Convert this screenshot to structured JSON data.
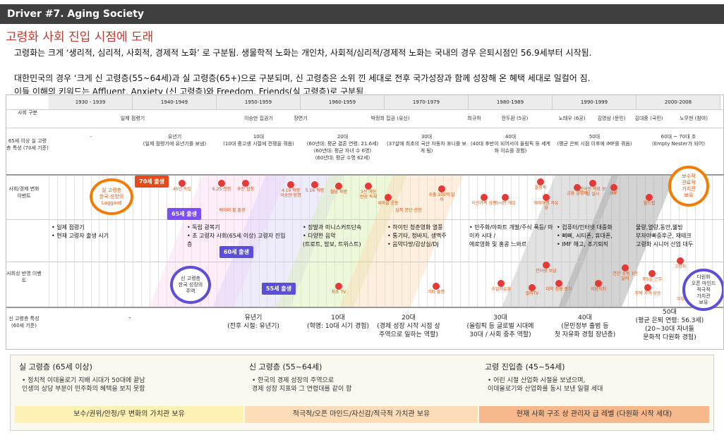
{
  "header": {
    "title": "Driver #7. Aging Society"
  },
  "heading": "고령화 사회 진입 시점에 도래",
  "paragraphs": [
    "고령화는 크게 ‘생리적, 심리적, 사회적, 경제적 노화’ 로 구분됨. 생물학적 노화는 개인차, 사회적/심리적/경제적 노화는 국내의 경우 은퇴시점인 56.9세부터 시작됨.",
    "대한민국의 경우 ‘크게 신 고령층(55~64세)과 실 고령층(65+)으로 구분되며, 신 고령층은 소위 낀 세대로 전후 국가성장과 함께 성장해 온 혜택 세대로 일컬어 짐.",
    "이들 이해의 키워드는 Affluent, Anxiety (신 고령층)와 Freedom, Friends(실 고령층)로 구분됨"
  ],
  "timeline": {
    "row_labels": [
      "사회 구분",
      "65세 이상 실 고령층 특성 (70세 기준)",
      "사회/경제 변화 이벤트",
      "사회상 반영 이벤트",
      "신 고령층 특성 (60세 기준)"
    ],
    "decades": [
      "1930 - 1939",
      "1940-1949",
      "1950-1959",
      "1960-1959",
      "1970-1979",
      "1980-1989",
      "1990-1999",
      "2000-2008"
    ],
    "eras": [
      "일제 점령기",
      "이승만 집권기",
      "장면기",
      "박정희 집권 (유신)",
      "최규하",
      "전두환 (5공)",
      "노태우 (6공)",
      "김영삼 (문민)",
      "김대중 (국민)",
      "노무현 (참여)"
    ],
    "senior_traits": [
      "-",
      "유년기\n(일제 점령기에 유년기를 보냄)",
      "10대\n(10대 중고생 시절에 전쟁을 겪음)",
      "20대\n(60년대: 평균 결혼 연령: 21.6세)\n(60년대: 평균 자녀 수 6명)\n(60년대: 평균 수명 62세)",
      "30대\n(37살에 최초의 국산 자동차 포니를 보게 됨)",
      "40대\n(40대 후반이 되어서야 올림픽 등 세계화 이슈를 경험)",
      "50대\n(평균 은퇴 시점 이후에 IMF를 겪음)",
      "60대 ~ 70대 초\n(Empty Nester가 되어)"
    ],
    "social_cells": [
      "• 일제 점령기\n• 현재 고령자 출생 시기",
      "• 독립 광복기\n• 초 고령자 사회(65세 이상) 고령자 진입 층",
      "• 장발과 미니스커트단속\n• 다양한 음악\n(트로트, 맘보, 트위스트)",
      "• 하이틴 청춘영화 열풍\n• 통기타, 청바지, 생맥주\n• 음악다방/감상실/DJ",
      "• 민주화/아파트 개발/주식 폭등/ 마이카 시대 /\n에로영화 및 홍콩 느와르",
      "• 컴퓨터/인터넷 대중화\n• 삐삐, 시티폰, 휴대폰,\n• IMF 해고, 조기퇴직",
      "물량,열량,동안,웰빙\n부자아빠증후군, 재테크\n고령화 시니어 산업 대두"
    ],
    "new_senior": [
      "-",
      "유년기\n(전후 시절: 유년기)",
      "10대\n(혁명: 10대 시기 경험)",
      "20대\n(경제 성장 시작 시점 상\n주역으로 일하는 역할)",
      "30대\n(올림픽 등 글로벌 시대에\n30대 / 사회 중추 역할)",
      "40대\n(문민정부 출범 등\n첫 자유화 경험 장년층)",
      "50대\n(평균 은퇴 연령: 56.3세)\n(20~30대 자녀들\n문화적 다원화 경험)"
    ],
    "tags": [
      "70세 출생",
      "65세 출생",
      "60세 출생",
      "55세 출생"
    ],
    "circles": [
      "실 고령층\n한국 성장의\nLaggard",
      "신 고령층\n한국 성장의\n주역",
      "보수적\n관료적\n가치관\n보유",
      "다원화\n오픈 마인드\n적극적\n가치관\n보유"
    ],
    "events": [
      "45년 독립",
      "6.25 전쟁",
      "휴전 협정",
      "4.19 혁명\n이승만 망명",
      "5.16 혁명",
      "월남 파병",
      "3선 개헌\n반공 독재",
      "새마을 운동",
      "수출 100억 달러",
      "이산가족 상봉",
      "아시안 게임",
      "올림픽",
      "해외여행 자유화",
      "금융 실명제",
      "전국민 의료 보험 실시",
      "IMF",
      "월드컵",
      "최초 TV",
      "기타 흥행",
      "수입자유화",
      "컬러TV",
      "대학 정원 증가",
      "지방자치",
      "연간 소득 1만 달러",
      "인터넷 보급",
      "주5일 근무",
      "주택 가격 상승",
      "고령자",
      "다양한 문화"
    ],
    "misc": [
      "베이비 붐 출생",
      "남북 분단 선언"
    ]
  },
  "panel": {
    "columns": [
      {
        "title": "실 고령층 (65세 이상)",
        "desc": "•  정치적 이데올로기 지배 시대가 50대에 끝남\n    인생의 상당 부분이 민주화의 혜택을 보지 못함",
        "bar": "보수/권위/안정/무 변화의 가치관 보유"
      },
      {
        "title": "신 고령층 (55~64세)",
        "desc": "•  한국의 경제 성장의 주역으로\n    경제 성장 지표와 그 연령대를 같이 함",
        "bar": "적극적/오픈 마인드/자신감/적극적 가치관 보유"
      },
      {
        "title": "고령 진입층 (45~54세)",
        "desc": "•  어린 시절 산업화 시절을 보냈으며,\n    이데올로기와 산업화를 동시 보낸 일렬 세대",
        "bar": "현재 사회 구조 상 관리자 급 레벨 (다원화 시작 세대)"
      }
    ]
  },
  "colors": {
    "header_bg": "#3f3f3f",
    "heading": "#c0392b",
    "orange": "#f57c00",
    "red_dot": "#e53935",
    "purple": "#5b4fd8"
  }
}
